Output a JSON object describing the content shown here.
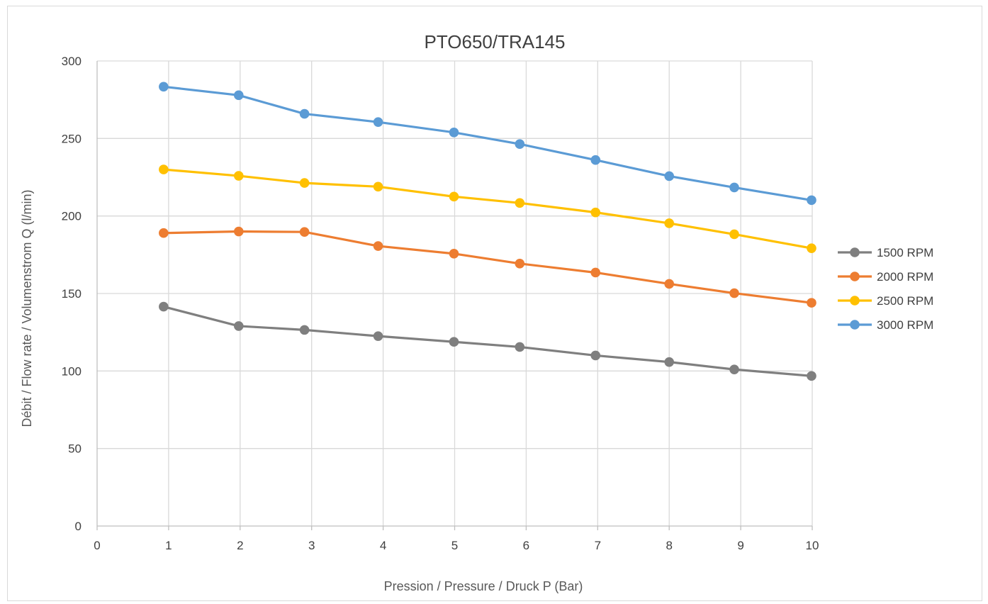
{
  "chart_data": {
    "type": "line",
    "title": "PTO650/TRA145",
    "xlabel": "Pression / Pressure / Druck P (Bar)",
    "ylabel": "Débit / Flow rate / Volumenstrom Q (l/min)",
    "xlim": [
      0,
      10
    ],
    "ylim": [
      0,
      300
    ],
    "x_ticks": [
      0,
      1,
      2,
      3,
      4,
      5,
      6,
      7,
      8,
      9,
      10
    ],
    "y_ticks": [
      0,
      50,
      100,
      150,
      200,
      250,
      300
    ],
    "grid": true,
    "legend_position": "right",
    "x": [
      0.93,
      1.98,
      2.9,
      3.93,
      4.99,
      5.91,
      6.97,
      8.0,
      8.91,
      9.99
    ],
    "series": [
      {
        "name": "1500 RPM",
        "color": "#7f7f7f",
        "values": [
          141.5,
          129.0,
          126.5,
          122.5,
          118.8,
          115.5,
          110.0,
          105.8,
          101.0,
          96.8
        ]
      },
      {
        "name": "2000 RPM",
        "color": "#ed7d31",
        "values": [
          189.0,
          190.0,
          189.7,
          180.6,
          175.7,
          169.3,
          163.5,
          156.2,
          150.2,
          144.0
        ]
      },
      {
        "name": "2500 RPM",
        "color": "#ffc000",
        "values": [
          230.0,
          225.9,
          221.3,
          218.9,
          212.5,
          208.4,
          202.3,
          195.3,
          188.2,
          179.2
        ]
      },
      {
        "name": "3000 RPM",
        "color": "#5b9bd5",
        "values": [
          283.4,
          277.9,
          265.9,
          260.6,
          253.9,
          246.4,
          236.1,
          225.7,
          218.4,
          210.2
        ]
      }
    ]
  }
}
